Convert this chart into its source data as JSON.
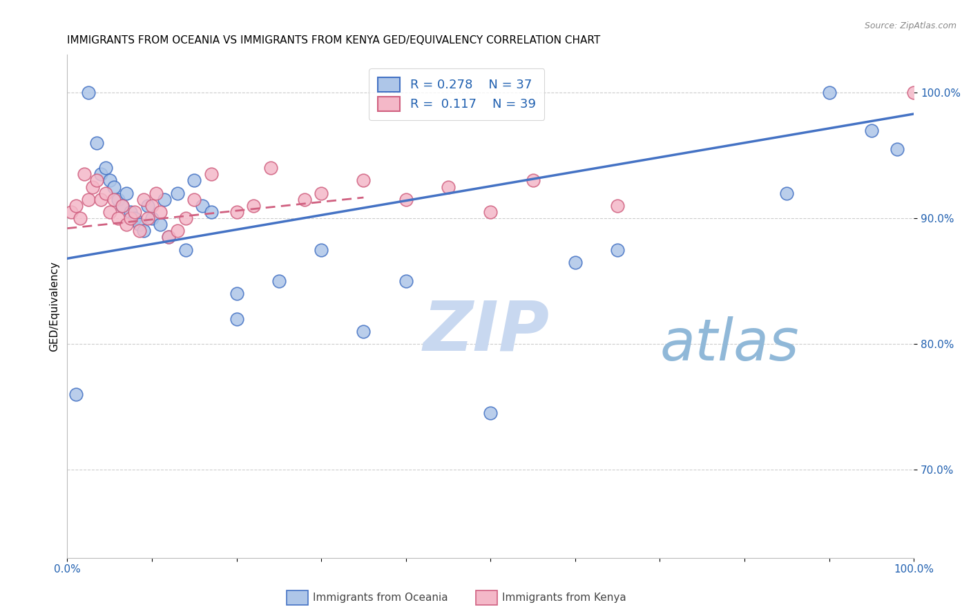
{
  "title": "IMMIGRANTS FROM OCEANIA VS IMMIGRANTS FROM KENYA GED/EQUIVALENCY CORRELATION CHART",
  "source": "Source: ZipAtlas.com",
  "ylabel": "GED/Equivalency",
  "legend_r1": "R = 0.278",
  "legend_n1": "N = 37",
  "legend_r2": "R =  0.117",
  "legend_n2": "N = 39",
  "legend_label1": "Immigrants from Oceania",
  "legend_label2": "Immigrants from Kenya",
  "oceania_color": "#aec6e8",
  "kenya_color": "#f4b8c8",
  "trend_blue": "#4472c4",
  "trend_pink": "#d06080",
  "watermark_zip": "ZIP",
  "watermark_atlas": "atlas",
  "watermark_color_zip": "#c8d8f0",
  "watermark_color_atlas": "#90b8d8",
  "oceania_x": [
    1.0,
    2.5,
    3.5,
    4.0,
    4.5,
    5.0,
    5.5,
    6.0,
    6.5,
    7.0,
    7.5,
    8.0,
    8.5,
    9.0,
    9.5,
    10.0,
    11.0,
    11.5,
    12.0,
    13.0,
    14.0,
    15.0,
    16.0,
    17.0,
    20.0,
    25.0,
    30.0,
    35.0,
    40.0,
    50.0,
    60.0,
    65.0,
    85.0,
    90.0,
    95.0,
    98.0,
    20.0
  ],
  "oceania_y": [
    76.0,
    100.0,
    96.0,
    93.5,
    94.0,
    93.0,
    92.5,
    91.5,
    91.0,
    92.0,
    90.5,
    90.0,
    89.5,
    89.0,
    91.0,
    90.0,
    89.5,
    91.5,
    88.5,
    92.0,
    87.5,
    93.0,
    91.0,
    90.5,
    84.0,
    85.0,
    87.5,
    81.0,
    85.0,
    74.5,
    86.5,
    87.5,
    92.0,
    100.0,
    97.0,
    95.5,
    82.0
  ],
  "kenya_x": [
    0.5,
    1.0,
    1.5,
    2.0,
    2.5,
    3.0,
    3.5,
    4.0,
    4.5,
    5.0,
    5.5,
    6.0,
    6.5,
    7.0,
    7.5,
    8.0,
    8.5,
    9.0,
    9.5,
    10.0,
    10.5,
    11.0,
    12.0,
    13.0,
    14.0,
    15.0,
    17.0,
    20.0,
    22.0,
    24.0,
    28.0,
    30.0,
    35.0,
    40.0,
    45.0,
    50.0,
    55.0,
    65.0,
    100.0
  ],
  "kenya_y": [
    90.5,
    91.0,
    90.0,
    93.5,
    91.5,
    92.5,
    93.0,
    91.5,
    92.0,
    90.5,
    91.5,
    90.0,
    91.0,
    89.5,
    90.0,
    90.5,
    89.0,
    91.5,
    90.0,
    91.0,
    92.0,
    90.5,
    88.5,
    89.0,
    90.0,
    91.5,
    93.5,
    90.5,
    91.0,
    94.0,
    91.5,
    92.0,
    93.0,
    91.5,
    92.5,
    90.5,
    93.0,
    91.0,
    100.0
  ],
  "xlim": [
    0,
    100
  ],
  "ylim": [
    63,
    103
  ],
  "yticks": [
    70,
    80,
    90,
    100
  ],
  "ytick_labels": [
    "70.0%",
    "80.0%",
    "90.0%",
    "100.0%"
  ],
  "grid_color": "#cccccc",
  "axis_color": "#2060b0",
  "title_fontsize": 11,
  "tick_fontsize": 11
}
